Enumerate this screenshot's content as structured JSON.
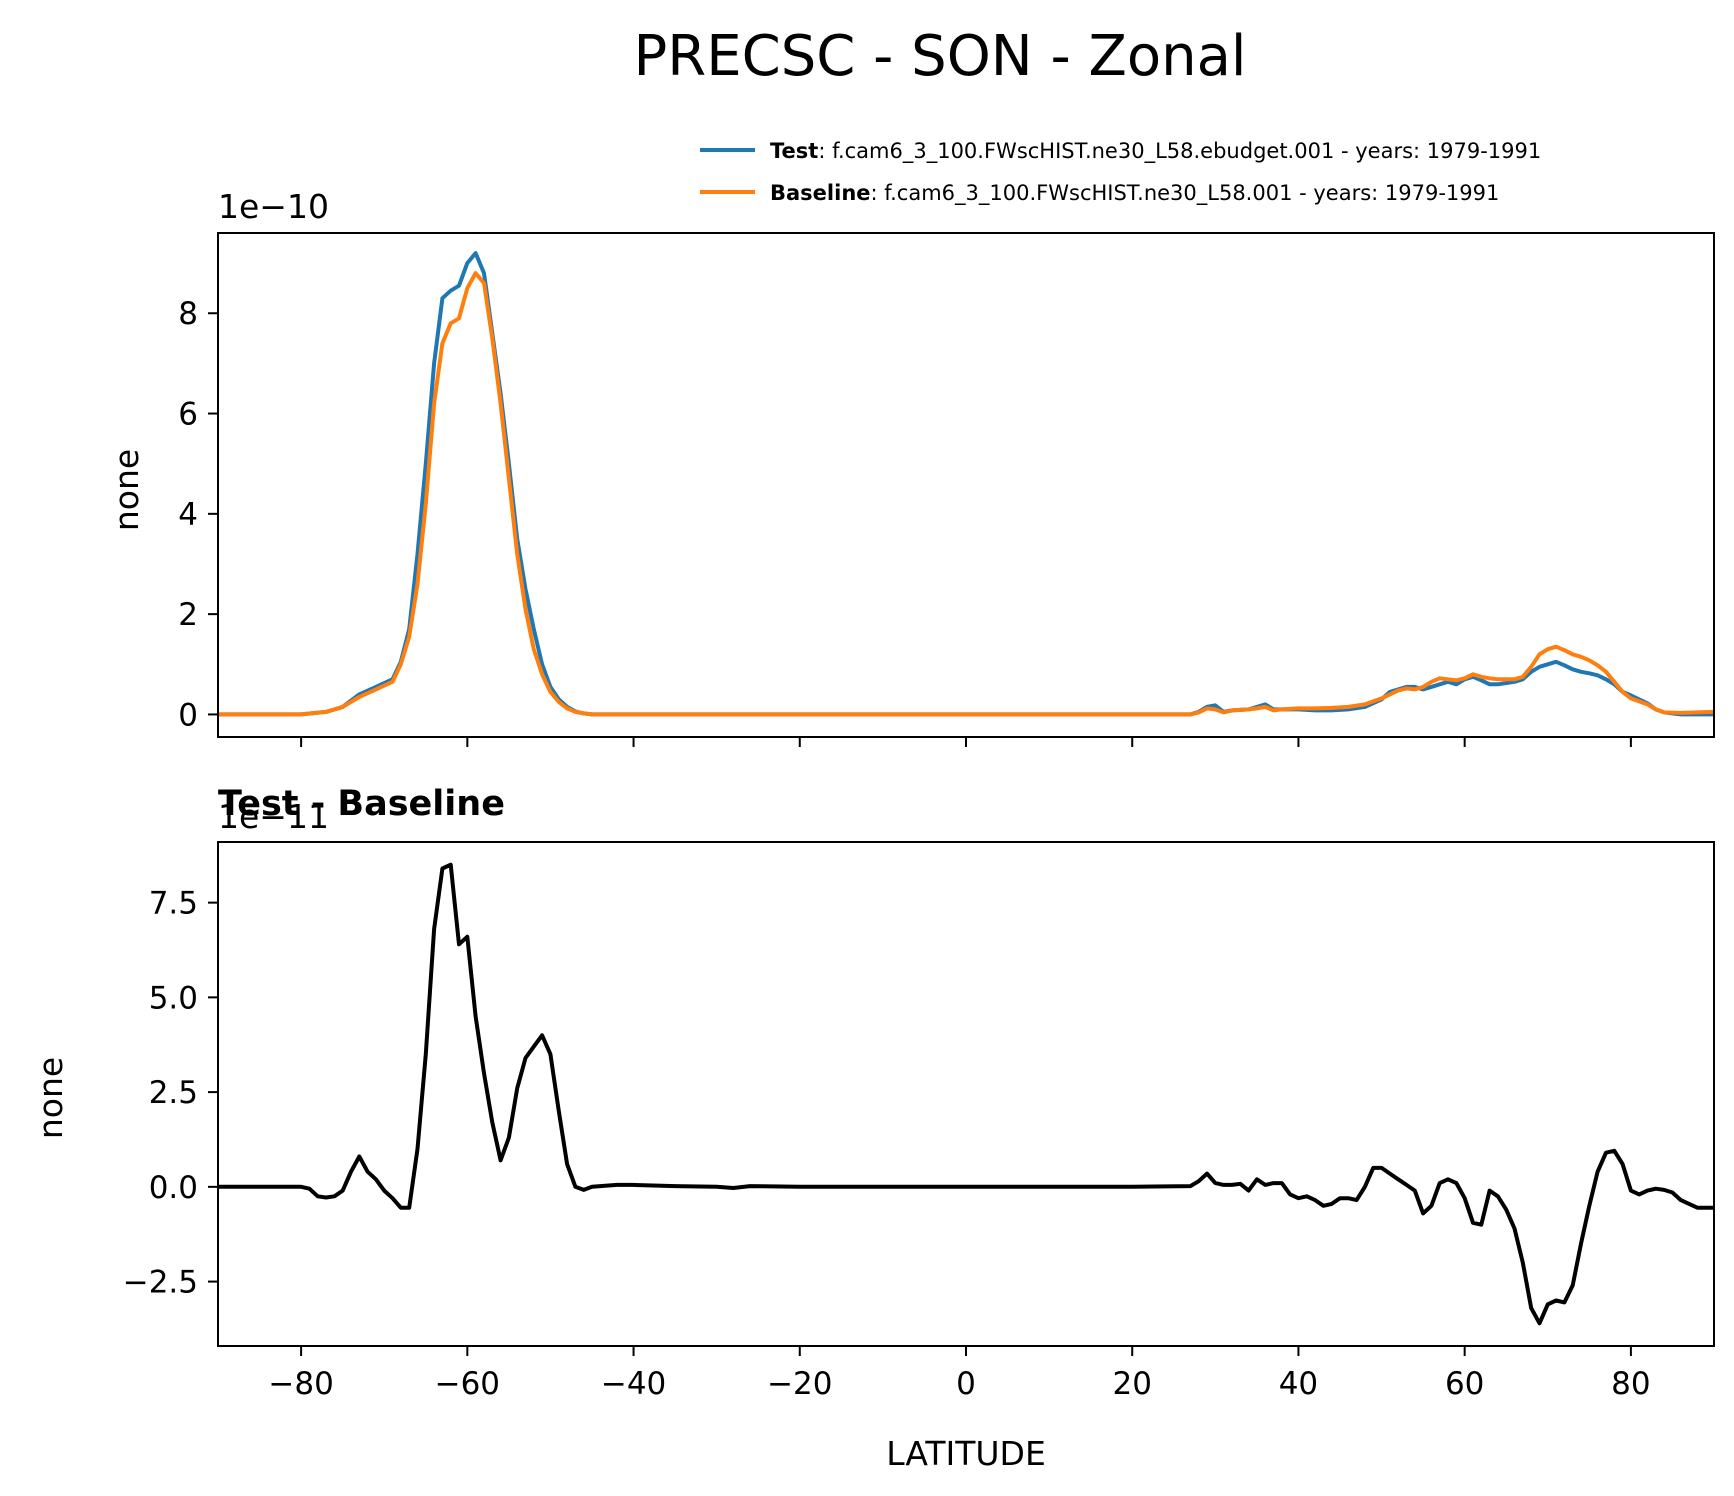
{
  "figure_title": "PRECSC - SON - Zonal",
  "colors": {
    "test": "#1f77b4",
    "baseline": "#ff7f0e",
    "diff": "#000000"
  },
  "legend": [
    {
      "name": "Test",
      "desc": ": f.cam6_3_100.FWscHIST.ne30_L58.ebudget.001 - years: 1979-1991"
    },
    {
      "name": "Baseline",
      "desc": ": f.cam6_3_100.FWscHIST.ne30_L58.001 - years: 1979-1991"
    }
  ],
  "chart_data": [
    {
      "type": "line",
      "title": "",
      "xlabel": "",
      "ylabel": "none",
      "offset_text": "1e−10",
      "xlim": [
        -90,
        90
      ],
      "ylim": [
        -0.45,
        9.6
      ],
      "xticks": [
        -80,
        -60,
        -40,
        -20,
        0,
        20,
        40,
        60,
        80
      ],
      "yticks": [
        0,
        2,
        4,
        6,
        8
      ],
      "ytick_labels": [
        "0",
        "2",
        "4",
        "6",
        "8"
      ],
      "series": [
        {
          "name": "Test",
          "x": [
            -90,
            -80,
            -77,
            -75,
            -73,
            -71,
            -69,
            -68,
            -67,
            -66,
            -65,
            -64,
            -63,
            -62,
            -61,
            -60,
            -59,
            -58,
            -57,
            -56,
            -55,
            -54,
            -53,
            -52,
            -51,
            -50,
            -49,
            -48,
            -47,
            -46,
            -45,
            -40,
            -30,
            -20,
            -10,
            0,
            10,
            20,
            27,
            28,
            29,
            30,
            31,
            32,
            34,
            35,
            36,
            37,
            38,
            40,
            42,
            44,
            46,
            48,
            50,
            51,
            52,
            53,
            54,
            55,
            56,
            57,
            58,
            59,
            60,
            61,
            62,
            63,
            64,
            66,
            67,
            68,
            69,
            70,
            71,
            72,
            73,
            74,
            75,
            76,
            77,
            78,
            79,
            80,
            81,
            82,
            83,
            84,
            86,
            90
          ],
          "y": [
            0,
            0,
            0.05,
            0.15,
            0.4,
            0.55,
            0.7,
            1.05,
            1.7,
            3.2,
            5.0,
            7.0,
            8.3,
            8.45,
            8.55,
            9.0,
            9.2,
            8.8,
            7.6,
            6.4,
            5.0,
            3.5,
            2.5,
            1.7,
            1.0,
            0.55,
            0.3,
            0.15,
            0.06,
            0.02,
            0,
            0,
            0,
            0,
            0,
            0,
            0,
            0,
            0,
            0.05,
            0.15,
            0.18,
            0.05,
            0.08,
            0.1,
            0.15,
            0.2,
            0.1,
            0.1,
            0.1,
            0.08,
            0.08,
            0.1,
            0.15,
            0.3,
            0.45,
            0.5,
            0.55,
            0.55,
            0.5,
            0.55,
            0.6,
            0.65,
            0.6,
            0.7,
            0.75,
            0.68,
            0.6,
            0.6,
            0.65,
            0.7,
            0.85,
            0.95,
            1.0,
            1.05,
            0.98,
            0.9,
            0.85,
            0.82,
            0.78,
            0.7,
            0.6,
            0.45,
            0.38,
            0.3,
            0.22,
            0.1,
            0.04,
            0,
            0
          ]
        },
        {
          "name": "Baseline",
          "x": [
            -90,
            -80,
            -77,
            -75,
            -73,
            -71,
            -69,
            -68,
            -67,
            -66,
            -65,
            -64,
            -63,
            -62,
            -61,
            -60,
            -59,
            -58,
            -57,
            -56,
            -55,
            -54,
            -53,
            -52,
            -51,
            -50,
            -49,
            -48,
            -47,
            -46,
            -45,
            -40,
            -30,
            -20,
            -10,
            0,
            10,
            20,
            27,
            28,
            29,
            30,
            31,
            32,
            34,
            35,
            36,
            37,
            38,
            40,
            42,
            44,
            46,
            48,
            50,
            51,
            52,
            53,
            54,
            55,
            56,
            57,
            58,
            59,
            60,
            61,
            62,
            63,
            64,
            66,
            67,
            68,
            69,
            70,
            71,
            72,
            73,
            74,
            75,
            76,
            77,
            78,
            79,
            80,
            81,
            82,
            83,
            84,
            86,
            90
          ],
          "y": [
            0,
            0,
            0.05,
            0.15,
            0.35,
            0.5,
            0.65,
            1.0,
            1.55,
            2.6,
            4.2,
            6.2,
            7.4,
            7.8,
            7.9,
            8.5,
            8.8,
            8.6,
            7.5,
            6.2,
            4.7,
            3.2,
            2.1,
            1.3,
            0.8,
            0.45,
            0.25,
            0.12,
            0.05,
            0.02,
            0,
            0,
            0,
            0,
            0,
            0,
            0,
            0,
            0,
            0.04,
            0.12,
            0.1,
            0.04,
            0.08,
            0.1,
            0.12,
            0.15,
            0.08,
            0.1,
            0.12,
            0.12,
            0.13,
            0.15,
            0.2,
            0.32,
            0.4,
            0.48,
            0.52,
            0.5,
            0.55,
            0.65,
            0.72,
            0.7,
            0.68,
            0.72,
            0.8,
            0.75,
            0.72,
            0.7,
            0.7,
            0.75,
            0.95,
            1.2,
            1.3,
            1.35,
            1.28,
            1.2,
            1.15,
            1.08,
            0.98,
            0.85,
            0.65,
            0.45,
            0.32,
            0.26,
            0.2,
            0.1,
            0.04,
            0.03,
            0.05
          ]
        }
      ]
    },
    {
      "type": "line",
      "title": "Test - Baseline",
      "xlabel": "LATITUDE",
      "ylabel": "none",
      "offset_text": "1e−11",
      "xlim": [
        -90,
        90
      ],
      "ylim": [
        -4.2,
        9.1
      ],
      "xticks": [
        -80,
        -60,
        -40,
        -20,
        0,
        20,
        40,
        60,
        80
      ],
      "xtick_labels": [
        "−80",
        "−60",
        "−40",
        "−20",
        "0",
        "20",
        "40",
        "60",
        "80"
      ],
      "yticks": [
        -2.5,
        0.0,
        2.5,
        5.0,
        7.5
      ],
      "ytick_labels": [
        "−2.5",
        "0.0",
        "2.5",
        "5.0",
        "7.5"
      ],
      "series": [
        {
          "name": "Test - Baseline",
          "x": [
            -90,
            -80,
            -79,
            -78,
            -77,
            -76,
            -75,
            -74,
            -73,
            -72,
            -71,
            -70,
            -69,
            -68,
            -67,
            -66,
            -65,
            -64,
            -63,
            -62,
            -61,
            -60,
            -59,
            -58,
            -57,
            -56,
            -55,
            -54,
            -53,
            -52,
            -51,
            -50,
            -49,
            -48,
            -47,
            -46,
            -45,
            -42,
            -40,
            -35,
            -30,
            -28,
            -26,
            -20,
            -10,
            0,
            10,
            20,
            27,
            28,
            29,
            30,
            31,
            32,
            33,
            34,
            35,
            36,
            37,
            38,
            39,
            40,
            41,
            42,
            43,
            44,
            45,
            46,
            47,
            48,
            49,
            50,
            51,
            52,
            53,
            54,
            55,
            56,
            57,
            58,
            59,
            60,
            61,
            62,
            63,
            64,
            65,
            66,
            67,
            68,
            69,
            70,
            71,
            72,
            73,
            74,
            75,
            76,
            77,
            78,
            79,
            80,
            81,
            82,
            83,
            84,
            85,
            86,
            87,
            88,
            89,
            90
          ],
          "y": [
            0,
            0,
            -0.05,
            -0.25,
            -0.28,
            -0.25,
            -0.1,
            0.4,
            0.8,
            0.4,
            0.2,
            -0.1,
            -0.3,
            -0.55,
            -0.55,
            1.0,
            3.5,
            6.8,
            8.4,
            8.5,
            6.4,
            6.6,
            4.5,
            3.0,
            1.7,
            0.7,
            1.3,
            2.6,
            3.4,
            3.7,
            4.0,
            3.5,
            2.0,
            0.6,
            0,
            -0.08,
            0,
            0.05,
            0.05,
            0.02,
            0,
            -0.03,
            0.02,
            0,
            0,
            0,
            0,
            0,
            0.02,
            0.15,
            0.35,
            0.1,
            0.05,
            0.05,
            0.08,
            -0.1,
            0.2,
            0.05,
            0.1,
            0.1,
            -0.2,
            -0.3,
            -0.25,
            -0.35,
            -0.5,
            -0.45,
            -0.3,
            -0.3,
            -0.35,
            0.0,
            0.5,
            0.5,
            0.35,
            0.2,
            0.05,
            -0.1,
            -0.7,
            -0.5,
            0.1,
            0.2,
            0.1,
            -0.3,
            -0.95,
            -1.0,
            -0.1,
            -0.25,
            -0.6,
            -1.1,
            -2.0,
            -3.2,
            -3.6,
            -3.1,
            -3.0,
            -3.05,
            -2.6,
            -1.5,
            -0.5,
            0.4,
            0.9,
            0.95,
            0.6,
            -0.1,
            -0.2,
            -0.1,
            -0.05,
            -0.08,
            -0.15,
            -0.35,
            -0.45,
            -0.55,
            -0.55,
            -0.55
          ]
        }
      ]
    }
  ]
}
